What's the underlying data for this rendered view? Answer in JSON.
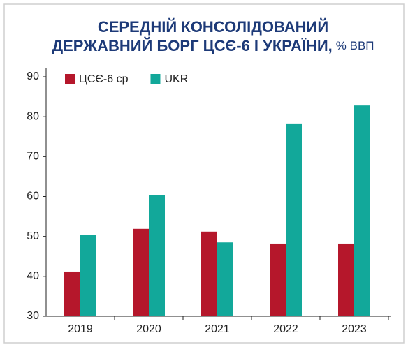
{
  "chart_data": {
    "type": "bar",
    "title": [
      "СЕРЕДНІЙ КОНСОЛІДОВАНИЙ",
      "ДЕРЖАВНИЙ БОРГ ЦСЄ-6 І УКРАЇНИ,"
    ],
    "subtitle": "% ВВП",
    "categories": [
      "2019",
      "2020",
      "2021",
      "2022",
      "2023"
    ],
    "series": [
      {
        "name": "ЦСЄ-6 ср",
        "color": "#b5172b",
        "values": [
          41.2,
          51.9,
          51.2,
          48.2,
          48.2
        ]
      },
      {
        "name": "UKR",
        "color": "#12a89a",
        "values": [
          50.3,
          60.4,
          48.5,
          78.3,
          82.8
        ]
      }
    ],
    "ylim": [
      30,
      90
    ],
    "yticks": [
      30,
      40,
      50,
      60,
      70,
      80,
      90
    ],
    "legend": "top-left"
  }
}
